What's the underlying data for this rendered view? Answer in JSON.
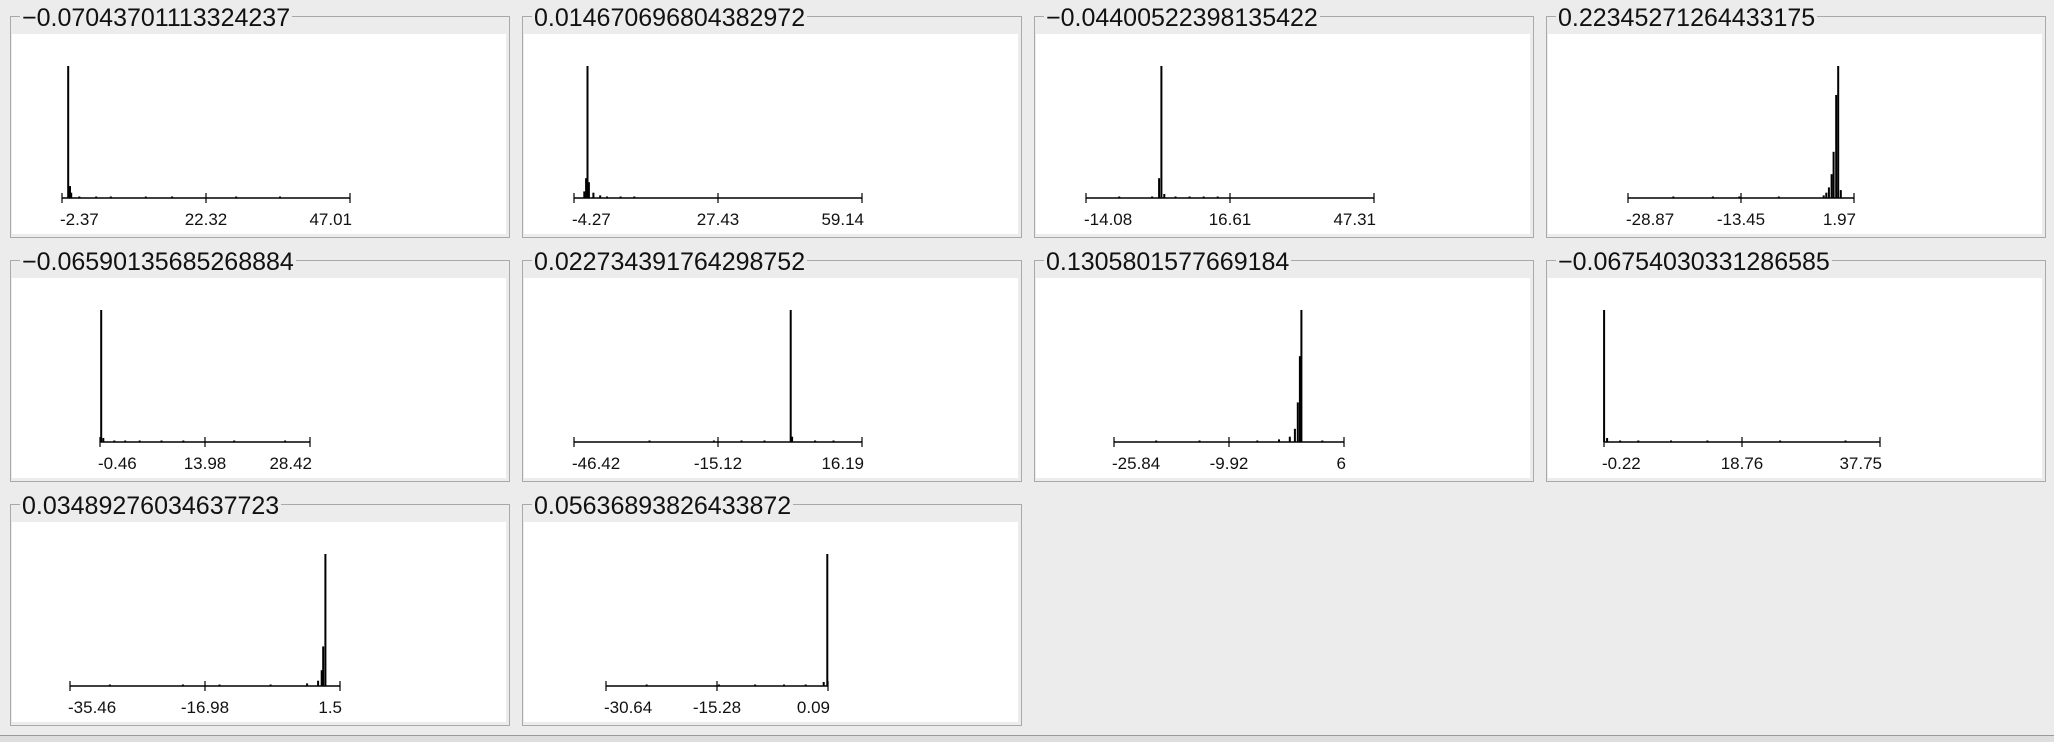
{
  "window": {
    "background": "#ececec"
  },
  "chart_data": [
    {
      "type": "histogram",
      "title": "−0.07043701113324237",
      "xlim": [
        -2.37,
        47.01
      ],
      "ticks": [
        "-2.37",
        "22.32",
        "47.01"
      ],
      "bins": [
        [
          -1.3,
          1.0
        ],
        [
          -1.0,
          0.09
        ],
        [
          -0.8,
          0.04
        ],
        [
          0.6,
          0.01
        ],
        [
          3.5,
          0.01
        ],
        [
          6.0,
          0.01
        ],
        [
          12.0,
          0.01
        ],
        [
          16.5,
          0.01
        ],
        [
          27.5,
          0.01
        ],
        [
          35.0,
          0.01
        ]
      ]
    },
    {
      "type": "histogram",
      "title": "0.01467069680438297​2",
      "xlim": [
        -4.27,
        59.14
      ],
      "ticks": [
        "-4.27",
        "27.43",
        "59.14"
      ],
      "bins": [
        [
          -1.3,
          1.0
        ],
        [
          -1.6,
          0.15
        ],
        [
          -1.0,
          0.12
        ],
        [
          -2.0,
          0.05
        ],
        [
          0.0,
          0.04
        ],
        [
          1.5,
          0.02
        ],
        [
          3.0,
          0.01
        ],
        [
          6.0,
          0.01
        ],
        [
          9.0,
          0.01
        ]
      ]
    },
    {
      "type": "histogram",
      "title": "−0.04400522398135422",
      "xlim": [
        -14.08,
        47.31
      ],
      "ticks": [
        "-14.08",
        "16.61",
        "47.31"
      ],
      "bins": [
        [
          2.0,
          1.0
        ],
        [
          1.5,
          0.15
        ],
        [
          2.6,
          0.03
        ],
        [
          -7.0,
          0.01
        ],
        [
          0.0,
          0.01
        ],
        [
          5.0,
          0.01
        ],
        [
          8.0,
          0.01
        ],
        [
          11.0,
          0.01
        ],
        [
          14.0,
          0.01
        ]
      ]
    },
    {
      "type": "histogram",
      "title": "0.22345271264433175",
      "xlim": [
        -28.87,
        5.4
      ],
      "ticks": [
        "-28.87",
        "-13.45",
        "1.97"
      ],
      "bins": [
        [
          3.0,
          1.0
        ],
        [
          2.7,
          0.78
        ],
        [
          2.3,
          0.35
        ],
        [
          2.0,
          0.18
        ],
        [
          1.6,
          0.08
        ],
        [
          1.2,
          0.04
        ],
        [
          0.8,
          0.02
        ],
        [
          3.4,
          0.06
        ],
        [
          -6.0,
          0.01
        ],
        [
          -12.0,
          0.01
        ],
        [
          -16.0,
          0.01
        ],
        [
          -22.0,
          0.01
        ]
      ]
    },
    {
      "type": "histogram",
      "title": "−0.06590135685268884",
      "xlim": [
        -0.46,
        28.42
      ],
      "ticks": [
        "-0.46",
        "13.98",
        "28.42"
      ],
      "bins": [
        [
          -0.3,
          1.0
        ],
        [
          0.0,
          0.03
        ],
        [
          1.5,
          0.01
        ],
        [
          3.0,
          0.01
        ],
        [
          5.0,
          0.01
        ],
        [
          8.0,
          0.01
        ],
        [
          11.0,
          0.01
        ],
        [
          18.0,
          0.01
        ],
        [
          25.0,
          0.01
        ]
      ]
    },
    {
      "type": "histogram",
      "title": "0.022734391764298752",
      "xlim": [
        -46.42,
        16.19
      ],
      "ticks": [
        "-46.42",
        "-15.12",
        "16.19"
      ],
      "bins": [
        [
          0.7,
          1.0
        ],
        [
          1.0,
          0.04
        ],
        [
          -5.0,
          0.01
        ],
        [
          -10.0,
          0.01
        ],
        [
          -16.0,
          0.01
        ],
        [
          -30.0,
          0.01
        ],
        [
          6.0,
          0.01
        ],
        [
          10.0,
          0.01
        ]
      ]
    },
    {
      "type": "histogram",
      "title": "0.1305801577669184",
      "xlim": [
        -25.84,
        6.0
      ],
      "ticks": [
        "-25.84",
        "-9.92",
        "6"
      ],
      "bins": [
        [
          0.1,
          1.0
        ],
        [
          -0.1,
          0.65
        ],
        [
          -0.4,
          0.3
        ],
        [
          -0.8,
          0.1
        ],
        [
          -1.5,
          0.04
        ],
        [
          -3.0,
          0.02
        ],
        [
          -6.0,
          0.01
        ],
        [
          -14.0,
          0.01
        ],
        [
          -20.0,
          0.01
        ],
        [
          3.0,
          0.01
        ]
      ]
    },
    {
      "type": "histogram",
      "title": "−0.06754030331286585",
      "xlim": [
        -0.22,
        37.75
      ],
      "ticks": [
        "-0.22",
        "18.76",
        "37.75"
      ],
      "bins": [
        [
          -0.2,
          1.0
        ],
        [
          0.2,
          0.03
        ],
        [
          2.0,
          0.01
        ],
        [
          4.5,
          0.01
        ],
        [
          9.0,
          0.01
        ],
        [
          14.0,
          0.01
        ],
        [
          24.0,
          0.01
        ],
        [
          33.0,
          0.01
        ]
      ]
    },
    {
      "type": "histogram",
      "title": "0.03489276034637723",
      "xlim": [
        -35.46,
        1.5
      ],
      "ticks": [
        "-35.46",
        "-16.98",
        "1.5"
      ],
      "bins": [
        [
          -0.5,
          1.0
        ],
        [
          -0.8,
          0.3
        ],
        [
          -1.0,
          0.12
        ],
        [
          -1.5,
          0.04
        ],
        [
          -3.0,
          0.02
        ],
        [
          -8.0,
          0.01
        ],
        [
          -15.0,
          0.01
        ],
        [
          -20.0,
          0.01
        ],
        [
          -30.0,
          0.01
        ]
      ]
    },
    {
      "type": "histogram",
      "title": "0.05636893826433872",
      "xlim": [
        -30.64,
        0.09
      ],
      "ticks": [
        "-30.64",
        "-15.28",
        "0.09"
      ],
      "bins": [
        [
          0.0,
          1.0
        ],
        [
          -0.5,
          0.03
        ],
        [
          -3.0,
          0.01
        ],
        [
          -6.0,
          0.01
        ],
        [
          -10.0,
          0.01
        ],
        [
          -15.0,
          0.01
        ],
        [
          -25.0,
          0.01
        ]
      ]
    }
  ]
}
